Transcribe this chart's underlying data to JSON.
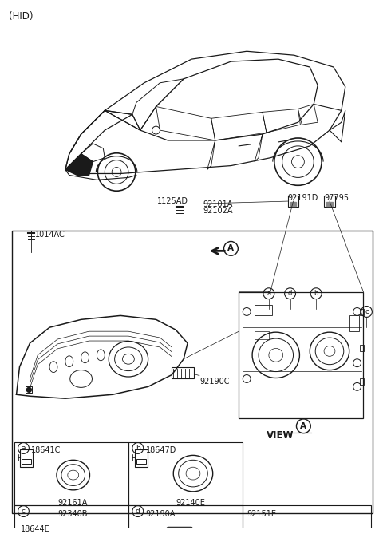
{
  "bg_color": "#ffffff",
  "lc": "#1a1a1a",
  "tc": "#1a1a1a",
  "fig_w": 4.8,
  "fig_h": 6.69,
  "dpi": 100,
  "hid_label": "(HID)",
  "labels": {
    "bolt_1125AD": "1125AD",
    "bolt_1014AC": "1014AC",
    "p92101A": "92101A",
    "p92102A": "92102A",
    "p92191D": "92191D",
    "p97795": "97795",
    "p92190C": "92190C",
    "view_a": "VIEW",
    "a18641C": "18641C",
    "a92161A": "92161A",
    "b18647D": "18647D",
    "b92140E": "92140E",
    "c92340B": "92340B",
    "c18644E": "18644E",
    "d92190A": "92190A",
    "e92151E": "92151E"
  }
}
